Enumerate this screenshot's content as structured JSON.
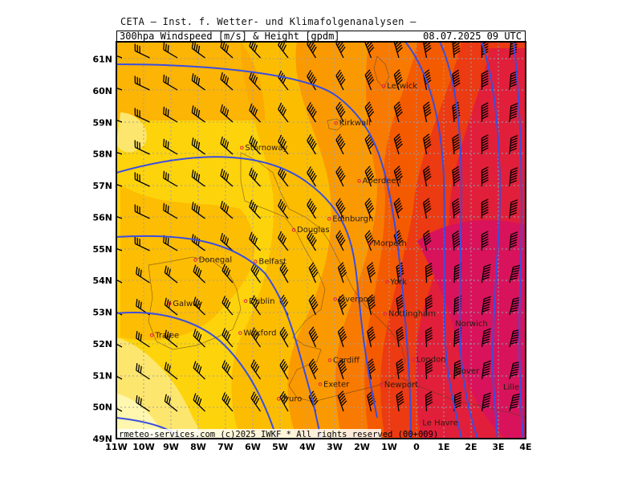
{
  "header": {
    "title": "CETA — Inst. f. Wetter- und Klimafolgenanalysen —",
    "left_label": "300hpa Windspeed [m/s] & Height [gpdm]",
    "valid_time": "08.07.2025 09 UTC"
  },
  "footer": {
    "credit": "rmeteo-services.com  (c)2025 IWKF * All rights reserved (00+009)"
  },
  "axes": {
    "lat_labels": [
      "61N",
      "60N",
      "59N",
      "58N",
      "57N",
      "56N",
      "55N",
      "54N",
      "53N",
      "52N",
      "51N",
      "50N",
      "49N"
    ],
    "lon_labels": [
      "11W",
      "10W",
      "9W",
      "8W",
      "7W",
      "6W",
      "5W",
      "4W",
      "3W",
      "2W",
      "1W",
      "0",
      "1E",
      "2E",
      "3E",
      "4E"
    ]
  },
  "cities": [
    {
      "name": "Lerwick",
      "lon": -1.2,
      "lat": 60.15
    },
    {
      "name": "Kirkwall",
      "lon": -2.95,
      "lat": 58.98
    },
    {
      "name": "Stornoway",
      "lon": -6.4,
      "lat": 58.2
    },
    {
      "name": "Aberdeen",
      "lon": -2.1,
      "lat": 57.15
    },
    {
      "name": "Edinburgh",
      "lon": -3.2,
      "lat": 55.95
    },
    {
      "name": "Douglas",
      "lon": -4.5,
      "lat": 55.6
    },
    {
      "name": "Morpeth",
      "lon": -1.7,
      "lat": 55.17
    },
    {
      "name": "Donegal",
      "lon": -8.1,
      "lat": 54.65
    },
    {
      "name": "Belfast",
      "lon": -5.9,
      "lat": 54.6
    },
    {
      "name": "York",
      "lon": -1.08,
      "lat": 53.96
    },
    {
      "name": "Galway",
      "lon": -9.05,
      "lat": 53.27
    },
    {
      "name": "Dublin",
      "lon": -6.26,
      "lat": 53.35
    },
    {
      "name": "Liverpool",
      "lon": -2.98,
      "lat": 53.41
    },
    {
      "name": "Nottingham",
      "lon": -1.15,
      "lat": 52.95
    },
    {
      "name": "Norwich",
      "lon": 1.3,
      "lat": 52.63
    },
    {
      "name": "Wexford",
      "lon": -6.46,
      "lat": 52.34
    },
    {
      "name": "Tralee",
      "lon": -9.7,
      "lat": 52.27
    },
    {
      "name": "Cardiff",
      "lon": -3.18,
      "lat": 51.48
    },
    {
      "name": "London",
      "lon": -0.12,
      "lat": 51.5
    },
    {
      "name": "Dover",
      "lon": 1.3,
      "lat": 51.13
    },
    {
      "name": "Exeter",
      "lon": -3.53,
      "lat": 50.72
    },
    {
      "name": "Newport",
      "lon": -1.3,
      "lat": 50.7
    },
    {
      "name": "Lille",
      "lon": 3.06,
      "lat": 50.63
    },
    {
      "name": "Truro",
      "lon": -5.05,
      "lat": 50.26
    },
    {
      "name": "Le Havre",
      "lon": 0.1,
      "lat": 49.5
    }
  ],
  "colors": {
    "palest": "#fff7b0",
    "pale": "#fde66e",
    "yellow": "#fdd30c",
    "light_orange": "#fcb800",
    "orange": "#fb9a00",
    "dark_orange": "#f87a00",
    "red_orange": "#f45a00",
    "red": "#ec3a12",
    "crimson": "#e21f3a",
    "magenta": "#d8135c",
    "contour": "#3a4ee0",
    "grid": "#9aa0b0"
  }
}
